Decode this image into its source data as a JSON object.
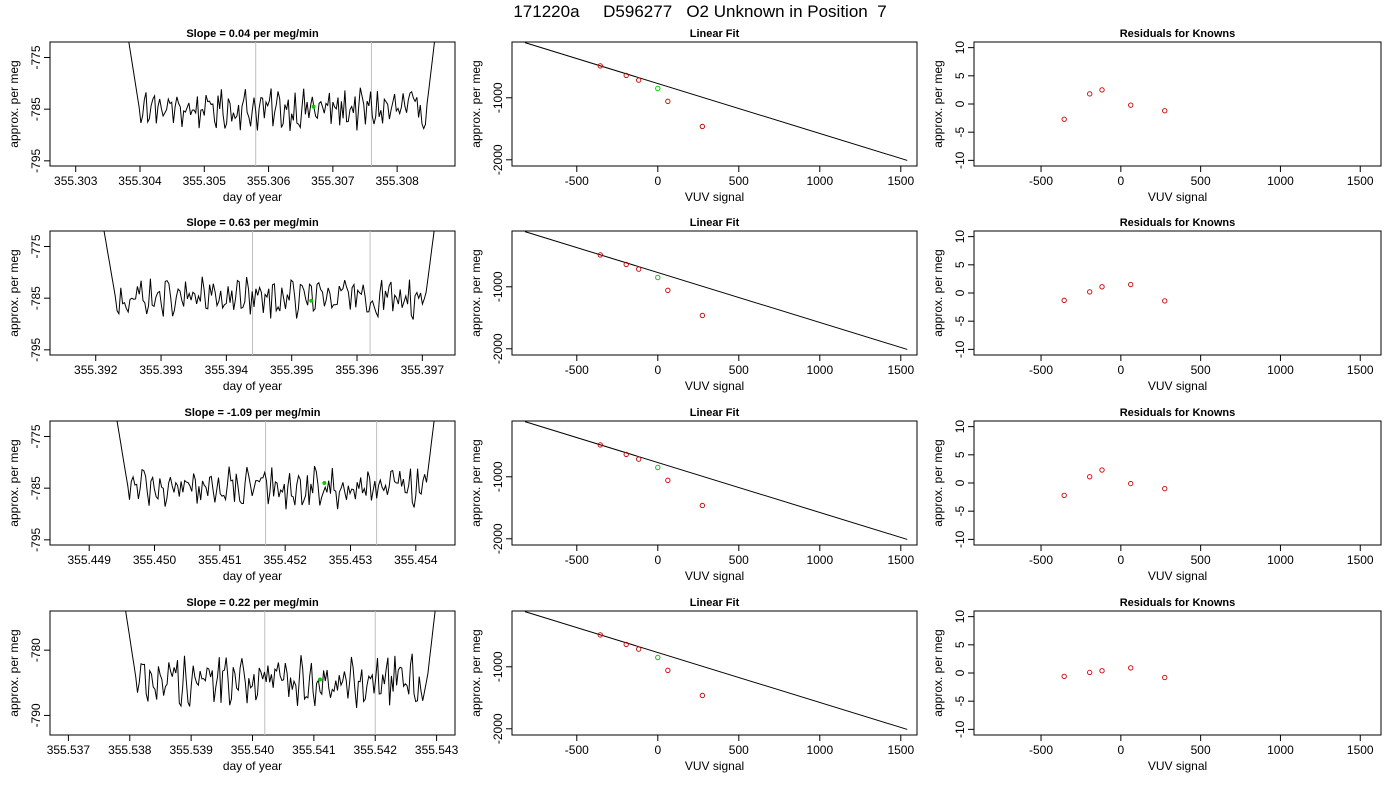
{
  "title": "171220a     D596277   O2 Unknown in Position  7",
  "colors": {
    "trace": "#000000",
    "marker": "#00cc00",
    "residual": "#cc0000",
    "vline": "#bfbfbf",
    "fitline": "#000000"
  },
  "chart_data": [
    {
      "type": "line",
      "row": 1,
      "title": "Slope =  0.04  per meg/min",
      "xlabel": "day of year",
      "ylabel": "approx. per meg",
      "xlim": [
        355.3026,
        355.3089
      ],
      "ylim": [
        -796,
        -772
      ],
      "xticks": [
        "355.303",
        "355.304",
        "355.305",
        "355.306",
        "355.307",
        "355.308"
      ],
      "yticks": [
        "-775",
        "-785",
        "-795"
      ],
      "trace_range": [
        355.3038,
        355.3086
      ],
      "vlines": [
        355.3058,
        355.3076
      ],
      "marker": [
        355.3067,
        -784.5
      ]
    },
    {
      "type": "scatter",
      "row": 1,
      "title": "Linear Fit",
      "xlabel": "VUV signal",
      "ylabel": "approx. per meg",
      "xlim": [
        -900,
        1600
      ],
      "ylim": [
        -2100,
        -100
      ],
      "xticks": [
        "-500",
        "0",
        "500",
        "1000",
        "1500"
      ],
      "yticks": [
        "-1000",
        "-2000"
      ],
      "x": [
        -355,
        -195,
        -118,
        62,
        275
      ],
      "y": [
        -486,
        -639,
        -714,
        -1057,
        -1462
      ],
      "fit": {
        "x1": -820,
        "y1": -110,
        "x2": 1540,
        "y2": -2010
      },
      "marker": [
        0,
        -850
      ]
    },
    {
      "type": "scatter",
      "row": 1,
      "title": "Residuals for Knowns",
      "xlabel": "VUV signal",
      "ylabel": "approx. per meg",
      "xlim": [
        -920,
        1630
      ],
      "ylim": [
        -11,
        11
      ],
      "xticks": [
        "-500",
        "0",
        "500",
        "1000",
        "1500"
      ],
      "yticks": [
        "10",
        "5",
        "0",
        "-5",
        "-10"
      ],
      "x": [
        -355,
        -195,
        -118,
        62,
        275
      ],
      "y": [
        -2.7,
        1.8,
        2.5,
        -0.2,
        -1.2
      ]
    },
    {
      "type": "line",
      "row": 2,
      "title": "Slope =  0.63  per meg/min",
      "xlabel": "day of year",
      "ylabel": "approx. per meg",
      "xlim": [
        355.3913,
        355.3975
      ],
      "ylim": [
        -796,
        -772
      ],
      "xticks": [
        "355.392",
        "355.393",
        "355.394",
        "355.395",
        "355.396",
        "355.397"
      ],
      "yticks": [
        "-775",
        "-785",
        "-795"
      ],
      "trace_range": [
        355.3921,
        355.3972
      ],
      "vlines": [
        355.3944,
        355.3962
      ],
      "marker": [
        355.3953,
        -785.5
      ]
    },
    {
      "type": "scatter",
      "row": 2,
      "title": "Linear Fit",
      "xlabel": "VUV signal",
      "ylabel": "approx. per meg",
      "xlim": [
        -900,
        1600
      ],
      "ylim": [
        -2100,
        -100
      ],
      "xticks": [
        "-500",
        "0",
        "500",
        "1000",
        "1500"
      ],
      "yticks": [
        "-1000",
        "-2000"
      ],
      "x": [
        -355,
        -195,
        -118,
        62,
        275
      ],
      "y": [
        -486,
        -639,
        -714,
        -1057,
        -1462
      ],
      "fit": {
        "x1": -820,
        "y1": -110,
        "x2": 1540,
        "y2": -2010
      },
      "marker": [
        0,
        -850
      ]
    },
    {
      "type": "scatter",
      "row": 2,
      "title": "Residuals for Knowns",
      "xlabel": "VUV signal",
      "ylabel": "approx. per meg",
      "xlim": [
        -920,
        1630
      ],
      "ylim": [
        -11,
        11
      ],
      "xticks": [
        "-500",
        "0",
        "500",
        "1000",
        "1500"
      ],
      "yticks": [
        "10",
        "5",
        "0",
        "-5",
        "-10"
      ],
      "x": [
        -355,
        -195,
        -118,
        62,
        275
      ],
      "y": [
        -1.3,
        0.2,
        1.1,
        1.5,
        -1.4
      ]
    },
    {
      "type": "line",
      "row": 3,
      "title": "Slope =  -1.09  per meg/min",
      "xlabel": "day of year",
      "ylabel": "approx. per meg",
      "xlim": [
        355.4484,
        355.4546
      ],
      "ylim": [
        -796,
        -772
      ],
      "xticks": [
        "355.449",
        "355.450",
        "355.451",
        "355.452",
        "355.453",
        "355.454"
      ],
      "yticks": [
        "-775",
        "-785",
        "-795"
      ],
      "trace_range": [
        355.4494,
        355.4543
      ],
      "vlines": [
        355.4517,
        355.4534
      ],
      "marker": [
        355.4526,
        -784
      ]
    },
    {
      "type": "scatter",
      "row": 3,
      "title": "Linear Fit",
      "xlabel": "VUV signal",
      "ylabel": "approx. per meg",
      "xlim": [
        -900,
        1600
      ],
      "ylim": [
        -2100,
        -100
      ],
      "xticks": [
        "-500",
        "0",
        "500",
        "1000",
        "1500"
      ],
      "yticks": [
        "-1000",
        "-2000"
      ],
      "x": [
        -355,
        -195,
        -118,
        62,
        275
      ],
      "y": [
        -486,
        -639,
        -714,
        -1057,
        -1462
      ],
      "fit": {
        "x1": -820,
        "y1": -110,
        "x2": 1540,
        "y2": -2010
      },
      "marker": [
        0,
        -850
      ]
    },
    {
      "type": "scatter",
      "row": 3,
      "title": "Residuals for Knowns",
      "xlabel": "VUV signal",
      "ylabel": "approx. per meg",
      "xlim": [
        -920,
        1630
      ],
      "ylim": [
        -11,
        11
      ],
      "xticks": [
        "-500",
        "0",
        "500",
        "1000",
        "1500"
      ],
      "yticks": [
        "10",
        "5",
        "0",
        "-5",
        "-10"
      ],
      "x": [
        -355,
        -195,
        -118,
        62,
        275
      ],
      "y": [
        -2.2,
        1.1,
        2.3,
        -0.1,
        -1.0
      ]
    },
    {
      "type": "line",
      "row": 4,
      "title": "Slope =  0.22  per meg/min",
      "xlabel": "day of year",
      "ylabel": "approx. per meg",
      "xlim": [
        355.5367,
        355.5433
      ],
      "ylim": [
        -793,
        -774
      ],
      "xticks": [
        "355.537",
        "355.538",
        "355.539",
        "355.540",
        "355.541",
        "355.542",
        "355.543"
      ],
      "yticks": [
        "-780",
        "-790"
      ],
      "trace_range": [
        355.5379,
        355.543
      ],
      "vlines": [
        355.5402,
        355.542
      ],
      "marker": [
        355.5411,
        -784.5
      ]
    },
    {
      "type": "scatter",
      "row": 4,
      "title": "Linear Fit",
      "xlabel": "VUV signal",
      "ylabel": "approx. per meg",
      "xlim": [
        -900,
        1600
      ],
      "ylim": [
        -2100,
        -100
      ],
      "xticks": [
        "-500",
        "0",
        "500",
        "1000",
        "1500"
      ],
      "yticks": [
        "-1000",
        "-2000"
      ],
      "x": [
        -355,
        -195,
        -118,
        62,
        275
      ],
      "y": [
        -486,
        -639,
        -714,
        -1057,
        -1462
      ],
      "fit": {
        "x1": -820,
        "y1": -110,
        "x2": 1540,
        "y2": -2010
      },
      "marker": [
        0,
        -850
      ]
    },
    {
      "type": "scatter",
      "row": 4,
      "title": "Residuals for Knowns",
      "xlabel": "VUV signal",
      "ylabel": "approx. per meg",
      "xlim": [
        -920,
        1630
      ],
      "ylim": [
        -11,
        11
      ],
      "xticks": [
        "-500",
        "0",
        "500",
        "1000",
        "1500"
      ],
      "yticks": [
        "10",
        "5",
        "0",
        "-5",
        "-10"
      ],
      "x": [
        -355,
        -195,
        -118,
        62,
        275
      ],
      "y": [
        -0.6,
        0.1,
        0.4,
        0.9,
        -0.8
      ]
    }
  ]
}
